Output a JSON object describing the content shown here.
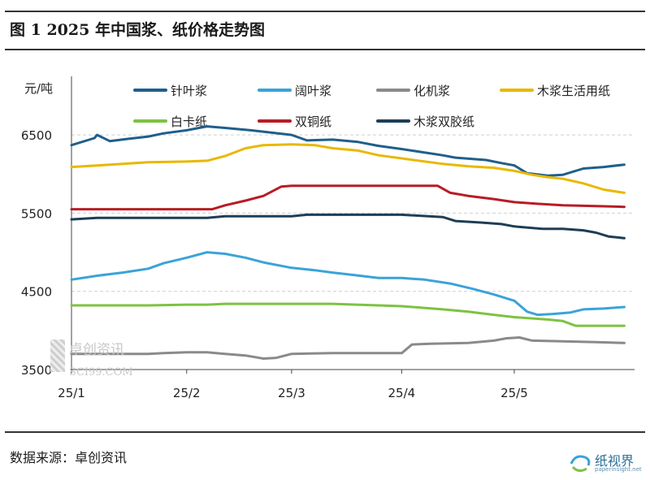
{
  "title": "图 1 2025 年中国浆、纸价格走势图",
  "source": "数据来源：卓创资讯",
  "watermark": {
    "text": "卓创资讯",
    "url": "SCI99.COM"
  },
  "logo": {
    "name": "纸视界",
    "url": "paperinsight.net"
  },
  "chart_data": {
    "type": "line",
    "ylabel": "元/吨",
    "ylim": [
      3500,
      7000
    ],
    "yticks": [
      3500,
      4500,
      5500,
      6500
    ],
    "xlim": [
      0,
      22
    ],
    "xticks": [
      {
        "label": "25/1",
        "x": 0
      },
      {
        "label": "25/2",
        "x": 4.5
      },
      {
        "label": "25/3",
        "x": 8.6
      },
      {
        "label": "25/4",
        "x": 12.9
      },
      {
        "label": "25/5",
        "x": 17.3
      }
    ],
    "grid": "horizontal-dashed",
    "legend_position": "top",
    "series": [
      {
        "name": "针叶浆",
        "color": "#1f5f8b",
        "points": [
          [
            0,
            6370
          ],
          [
            0.9,
            6460
          ],
          [
            1,
            6500
          ],
          [
            1.5,
            6420
          ],
          [
            2.2,
            6450
          ],
          [
            3,
            6480
          ],
          [
            3.6,
            6520
          ],
          [
            4.5,
            6560
          ],
          [
            5.3,
            6610
          ],
          [
            6,
            6590
          ],
          [
            7,
            6560
          ],
          [
            7.8,
            6530
          ],
          [
            8.6,
            6500
          ],
          [
            9.2,
            6430
          ],
          [
            10.2,
            6440
          ],
          [
            11.2,
            6410
          ],
          [
            12,
            6360
          ],
          [
            12.9,
            6320
          ],
          [
            14.5,
            6240
          ],
          [
            15,
            6210
          ],
          [
            16.2,
            6180
          ],
          [
            16.8,
            6140
          ],
          [
            17.3,
            6110
          ],
          [
            17.8,
            6010
          ],
          [
            18.6,
            5980
          ],
          [
            19.2,
            5990
          ],
          [
            20,
            6070
          ],
          [
            20.8,
            6090
          ],
          [
            21.6,
            6120
          ]
        ]
      },
      {
        "name": "阔叶浆",
        "color": "#3aa3d8",
        "points": [
          [
            0,
            4650
          ],
          [
            1,
            4700
          ],
          [
            2,
            4740
          ],
          [
            3,
            4790
          ],
          [
            3.6,
            4860
          ],
          [
            4.5,
            4930
          ],
          [
            5.3,
            5000
          ],
          [
            6,
            4980
          ],
          [
            6.8,
            4930
          ],
          [
            7.5,
            4870
          ],
          [
            8.6,
            4800
          ],
          [
            9.5,
            4770
          ],
          [
            10.2,
            4740
          ],
          [
            11,
            4710
          ],
          [
            12,
            4670
          ],
          [
            12.9,
            4670
          ],
          [
            13.8,
            4650
          ],
          [
            14.8,
            4600
          ],
          [
            15.7,
            4530
          ],
          [
            16.5,
            4460
          ],
          [
            17.3,
            4380
          ],
          [
            17.8,
            4240
          ],
          [
            18.2,
            4200
          ],
          [
            18.8,
            4210
          ],
          [
            19.5,
            4230
          ],
          [
            20,
            4270
          ],
          [
            20.8,
            4280
          ],
          [
            21.6,
            4300
          ]
        ]
      },
      {
        "name": "化机浆",
        "color": "#8a8a8a",
        "points": [
          [
            0,
            3700
          ],
          [
            1,
            3700
          ],
          [
            2,
            3700
          ],
          [
            3,
            3700
          ],
          [
            3.6,
            3710
          ],
          [
            4.5,
            3720
          ],
          [
            5.3,
            3720
          ],
          [
            6,
            3700
          ],
          [
            6.8,
            3680
          ],
          [
            7.5,
            3640
          ],
          [
            8,
            3650
          ],
          [
            8.6,
            3700
          ],
          [
            10.2,
            3710
          ],
          [
            12,
            3710
          ],
          [
            12.9,
            3710
          ],
          [
            13.3,
            3820
          ],
          [
            14,
            3830
          ],
          [
            15.5,
            3840
          ],
          [
            16.5,
            3870
          ],
          [
            17,
            3900
          ],
          [
            17.5,
            3910
          ],
          [
            18,
            3870
          ],
          [
            19.2,
            3860
          ],
          [
            20.5,
            3850
          ],
          [
            21.6,
            3840
          ]
        ]
      },
      {
        "name": "木浆生活用纸",
        "color": "#e8b800",
        "points": [
          [
            0,
            6090
          ],
          [
            1,
            6110
          ],
          [
            2,
            6130
          ],
          [
            3,
            6150
          ],
          [
            4.5,
            6160
          ],
          [
            5.3,
            6170
          ],
          [
            6,
            6230
          ],
          [
            6.8,
            6330
          ],
          [
            7.5,
            6370
          ],
          [
            8.6,
            6380
          ],
          [
            9.5,
            6370
          ],
          [
            10.2,
            6330
          ],
          [
            11.2,
            6300
          ],
          [
            12,
            6240
          ],
          [
            12.9,
            6200
          ],
          [
            14.5,
            6130
          ],
          [
            15.5,
            6100
          ],
          [
            16.5,
            6080
          ],
          [
            17.3,
            6040
          ],
          [
            18,
            5990
          ],
          [
            18.6,
            5960
          ],
          [
            19.2,
            5940
          ],
          [
            20,
            5880
          ],
          [
            20.8,
            5800
          ],
          [
            21.6,
            5760
          ]
        ]
      },
      {
        "name": "白卡纸",
        "color": "#7dc242",
        "points": [
          [
            0,
            4320
          ],
          [
            1,
            4320
          ],
          [
            2,
            4320
          ],
          [
            3,
            4320
          ],
          [
            4.5,
            4330
          ],
          [
            5.3,
            4330
          ],
          [
            6,
            4340
          ],
          [
            8.6,
            4340
          ],
          [
            10.2,
            4340
          ],
          [
            12,
            4320
          ],
          [
            12.9,
            4310
          ],
          [
            14.5,
            4270
          ],
          [
            15.5,
            4240
          ],
          [
            16.5,
            4200
          ],
          [
            17.3,
            4170
          ],
          [
            18.6,
            4140
          ],
          [
            19.2,
            4120
          ],
          [
            19.7,
            4060
          ],
          [
            20.5,
            4060
          ],
          [
            21.6,
            4060
          ]
        ]
      },
      {
        "name": "双铜纸",
        "color": "#b81c26",
        "points": [
          [
            0,
            5550
          ],
          [
            1,
            5550
          ],
          [
            2,
            5550
          ],
          [
            3,
            5550
          ],
          [
            4.5,
            5550
          ],
          [
            5.5,
            5550
          ],
          [
            6,
            5600
          ],
          [
            6.8,
            5660
          ],
          [
            7.5,
            5720
          ],
          [
            8.2,
            5840
          ],
          [
            8.6,
            5850
          ],
          [
            9.5,
            5850
          ],
          [
            10.2,
            5850
          ],
          [
            12,
            5850
          ],
          [
            12.9,
            5850
          ],
          [
            14.3,
            5850
          ],
          [
            14.8,
            5760
          ],
          [
            15.5,
            5720
          ],
          [
            16.5,
            5680
          ],
          [
            17.3,
            5640
          ],
          [
            18.2,
            5620
          ],
          [
            19.2,
            5600
          ],
          [
            20.5,
            5590
          ],
          [
            21.6,
            5580
          ]
        ]
      },
      {
        "name": "木浆双胶纸",
        "color": "#1d3e57",
        "points": [
          [
            0,
            5420
          ],
          [
            1,
            5440
          ],
          [
            2,
            5440
          ],
          [
            3,
            5440
          ],
          [
            4.5,
            5440
          ],
          [
            5.3,
            5440
          ],
          [
            6,
            5460
          ],
          [
            8.6,
            5460
          ],
          [
            9.2,
            5480
          ],
          [
            10.2,
            5480
          ],
          [
            12,
            5480
          ],
          [
            12.9,
            5480
          ],
          [
            14.5,
            5450
          ],
          [
            15,
            5400
          ],
          [
            16,
            5380
          ],
          [
            16.8,
            5360
          ],
          [
            17.3,
            5330
          ],
          [
            18.4,
            5300
          ],
          [
            19.2,
            5300
          ],
          [
            20,
            5280
          ],
          [
            20.5,
            5250
          ],
          [
            21,
            5200
          ],
          [
            21.6,
            5180
          ]
        ]
      }
    ]
  }
}
